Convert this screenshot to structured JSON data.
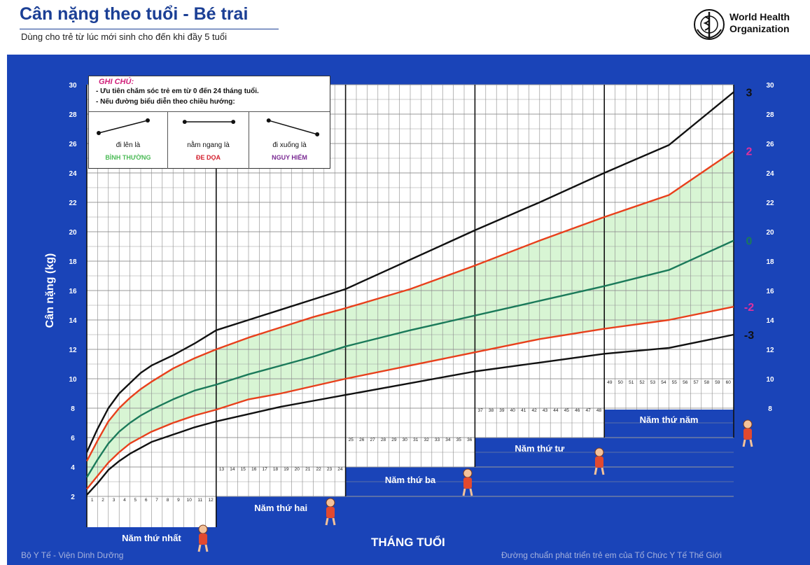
{
  "header": {
    "title": "Cân nặng theo tuổi - Bé trai",
    "subtitle": "Dùng cho trẻ từ lúc mới sinh cho đến khi đầy 5 tuổi",
    "org_line1": "World Health",
    "org_line2": "Organization"
  },
  "note": {
    "title": "GHI CHÚ:",
    "line1": "- Ưu tiên chăm sóc trẻ em từ 0 đến 24 tháng tuổi.",
    "line2": "- Nếu đường biểu diễn theo chiều hướng:",
    "cases": [
      {
        "caption": "đi lên là",
        "word": "BÌNH THƯỜNG",
        "color": "#4cbb57",
        "icon": "trend-up-icon"
      },
      {
        "caption": "nằm ngang là",
        "word": "ĐE DỌA",
        "color": "#d3202e",
        "icon": "trend-flat-icon"
      },
      {
        "caption": "đi xuống là",
        "word": "NGUY HIỂM",
        "color": "#7a2a93",
        "icon": "trend-down-icon"
      }
    ]
  },
  "footer": {
    "left": "Bộ Y Tế - Viện Dinh Dưỡng",
    "right": "Đường chuẩn phát triển trẻ em của Tổ Chức Y Tế Thế Giới"
  },
  "chart_data": {
    "type": "line",
    "title": "Cân nặng theo tuổi - Bé trai",
    "xlabel": "THÁNG TUỔI",
    "ylabel": "Cân nặng (kg)",
    "xlim": [
      0,
      60
    ],
    "ylim": [
      2,
      30
    ],
    "yticks": [
      2,
      4,
      6,
      8,
      10,
      12,
      14,
      16,
      18,
      20,
      22,
      24,
      26,
      28,
      30
    ],
    "month_labels": [
      1,
      2,
      3,
      4,
      5,
      6,
      7,
      8,
      9,
      10,
      11,
      12,
      13,
      14,
      15,
      16,
      17,
      18,
      19,
      20,
      21,
      22,
      23,
      24,
      25,
      26,
      27,
      28,
      29,
      30,
      31,
      32,
      33,
      34,
      35,
      36,
      37,
      38,
      39,
      40,
      41,
      42,
      43,
      44,
      45,
      46,
      47,
      48,
      49,
      50,
      51,
      52,
      53,
      54,
      55,
      56,
      57,
      58,
      59,
      60
    ],
    "year_labels": [
      "Năm thứ nhất",
      "Năm thứ hai",
      "Năm thứ ba",
      "Năm thứ tư",
      "Năm thứ năm"
    ],
    "year_floor_kg": [
      0.5,
      3.3,
      4.2,
      6.2,
      8.0
    ],
    "grid": true,
    "shaded_band": [
      "-2",
      "2"
    ],
    "series": [
      {
        "name": "3",
        "color": "#111111",
        "x": [
          0,
          1,
          2,
          3,
          4,
          5,
          6,
          8,
          10,
          12,
          15,
          18,
          21,
          24,
          30,
          36,
          42,
          48,
          54,
          60
        ],
        "y": [
          5.0,
          6.6,
          8.0,
          9.0,
          9.7,
          10.4,
          10.9,
          11.6,
          12.4,
          13.3,
          14.0,
          14.7,
          15.4,
          16.1,
          18.1,
          20.1,
          22.0,
          24.0,
          25.9,
          29.5
        ]
      },
      {
        "name": "2",
        "color": "#e8401c",
        "x": [
          0,
          1,
          2,
          3,
          4,
          5,
          6,
          8,
          10,
          12,
          15,
          18,
          21,
          24,
          30,
          36,
          42,
          48,
          54,
          60
        ],
        "y": [
          4.4,
          5.8,
          7.1,
          8.0,
          8.7,
          9.3,
          9.8,
          10.7,
          11.4,
          12.0,
          12.8,
          13.5,
          14.2,
          14.8,
          16.1,
          17.7,
          19.4,
          21.0,
          22.5,
          25.5
        ]
      },
      {
        "name": "0",
        "color": "#1b7a5a",
        "x": [
          0,
          1,
          2,
          3,
          4,
          5,
          6,
          8,
          10,
          12,
          15,
          18,
          21,
          24,
          30,
          36,
          42,
          48,
          54,
          60
        ],
        "y": [
          3.3,
          4.5,
          5.6,
          6.4,
          7.0,
          7.5,
          7.9,
          8.6,
          9.2,
          9.6,
          10.3,
          10.9,
          11.5,
          12.2,
          13.3,
          14.3,
          15.3,
          16.3,
          17.4,
          19.4
        ]
      },
      {
        "name": "-2",
        "color": "#e8401c",
        "x": [
          0,
          1,
          2,
          3,
          4,
          5,
          6,
          8,
          10,
          12,
          15,
          18,
          21,
          24,
          30,
          36,
          42,
          48,
          54,
          60
        ],
        "y": [
          2.5,
          3.4,
          4.3,
          5.0,
          5.6,
          6.0,
          6.4,
          7.0,
          7.5,
          7.9,
          8.6,
          9.0,
          9.5,
          10.0,
          10.9,
          11.8,
          12.7,
          13.4,
          14.0,
          14.9
        ]
      },
      {
        "name": "-3",
        "color": "#111111",
        "x": [
          0,
          1,
          2,
          3,
          4,
          5,
          6,
          8,
          10,
          12,
          15,
          18,
          21,
          24,
          30,
          36,
          42,
          48,
          54,
          60
        ],
        "y": [
          2.1,
          2.9,
          3.8,
          4.4,
          4.9,
          5.3,
          5.7,
          6.2,
          6.7,
          7.1,
          7.6,
          8.1,
          8.5,
          8.9,
          9.7,
          10.5,
          11.1,
          11.7,
          12.1,
          13.0
        ]
      }
    ]
  }
}
